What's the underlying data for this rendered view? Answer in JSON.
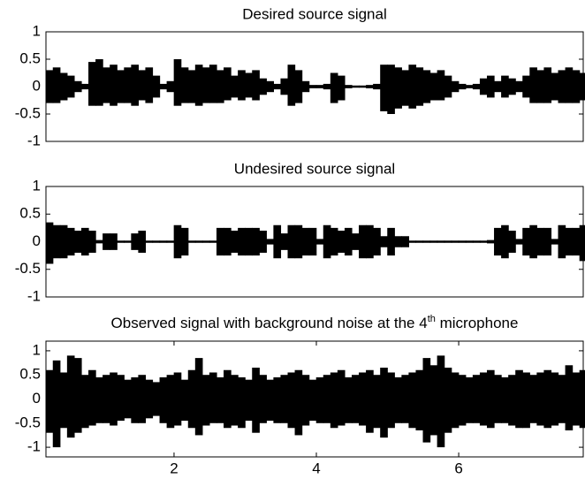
{
  "chart_data": [
    {
      "type": "waveform",
      "title": "Desired source signal",
      "x": [
        0.25,
        0.35,
        0.45,
        0.55,
        0.65,
        0.75,
        0.85,
        0.95,
        1.05,
        1.15,
        1.25,
        1.35,
        1.45,
        1.55,
        1.65,
        1.75,
        1.85,
        1.95,
        2.05,
        2.15,
        2.25,
        2.35,
        2.45,
        2.55,
        2.65,
        2.75,
        2.85,
        2.95,
        3.05,
        3.15,
        3.25,
        3.35,
        3.45,
        3.55,
        3.65,
        3.75,
        3.85,
        3.95,
        4.05,
        4.15,
        4.25,
        4.35,
        4.45,
        4.55,
        4.65,
        4.75,
        4.85,
        4.95,
        5.05,
        5.15,
        5.25,
        5.35,
        5.45,
        5.55,
        5.65,
        5.75,
        5.85,
        5.95,
        6.05,
        6.15,
        6.25,
        6.35,
        6.45,
        6.55,
        6.65,
        6.75,
        6.85,
        6.95,
        7.05,
        7.15,
        7.25,
        7.35,
        7.45,
        7.55,
        7.65,
        7.75
      ],
      "upper": [
        0.3,
        0.35,
        0.25,
        0.2,
        0.1,
        0.05,
        0.45,
        0.5,
        0.35,
        0.4,
        0.3,
        0.35,
        0.4,
        0.3,
        0.35,
        0.2,
        0.05,
        0.1,
        0.5,
        0.35,
        0.3,
        0.4,
        0.35,
        0.4,
        0.3,
        0.35,
        0.2,
        0.3,
        0.25,
        0.3,
        0.15,
        0.1,
        0.05,
        0.15,
        0.4,
        0.3,
        0.1,
        0.03,
        0.03,
        0.05,
        0.25,
        0.2,
        0.03,
        0.02,
        0.02,
        0.03,
        0.05,
        0.4,
        0.4,
        0.35,
        0.3,
        0.4,
        0.35,
        0.3,
        0.25,
        0.3,
        0.2,
        0.1,
        0.05,
        0.03,
        0.05,
        0.15,
        0.2,
        0.1,
        0.2,
        0.15,
        0.1,
        0.2,
        0.35,
        0.3,
        0.35,
        0.25,
        0.3,
        0.35,
        0.3,
        0.25
      ],
      "lower": [
        -0.3,
        -0.3,
        -0.25,
        -0.2,
        -0.1,
        -0.05,
        -0.35,
        -0.35,
        -0.3,
        -0.35,
        -0.3,
        -0.3,
        -0.35,
        -0.25,
        -0.3,
        -0.2,
        -0.05,
        -0.1,
        -0.35,
        -0.3,
        -0.3,
        -0.35,
        -0.3,
        -0.3,
        -0.3,
        -0.25,
        -0.2,
        -0.25,
        -0.2,
        -0.25,
        -0.15,
        -0.1,
        -0.05,
        -0.15,
        -0.35,
        -0.3,
        -0.1,
        -0.03,
        -0.03,
        -0.05,
        -0.3,
        -0.25,
        -0.03,
        -0.02,
        -0.02,
        -0.03,
        -0.05,
        -0.45,
        -0.5,
        -0.4,
        -0.35,
        -0.4,
        -0.35,
        -0.3,
        -0.25,
        -0.25,
        -0.2,
        -0.1,
        -0.05,
        -0.03,
        -0.05,
        -0.15,
        -0.2,
        -0.1,
        -0.2,
        -0.15,
        -0.1,
        -0.2,
        -0.3,
        -0.3,
        -0.3,
        -0.25,
        -0.3,
        -0.3,
        -0.3,
        -0.25
      ],
      "color": "#000000",
      "xlim": [
        0.2,
        7.75
      ],
      "ylim": [
        -1,
        1
      ],
      "yticks": [
        -1,
        -0.5,
        0,
        0.5,
        1
      ]
    },
    {
      "type": "waveform",
      "title": "Undesired source signal",
      "x": [
        0.25,
        0.35,
        0.45,
        0.55,
        0.65,
        0.75,
        0.85,
        0.95,
        1.05,
        1.15,
        1.25,
        1.35,
        1.45,
        1.55,
        1.65,
        1.75,
        1.85,
        1.95,
        2.05,
        2.15,
        2.25,
        2.35,
        2.45,
        2.55,
        2.65,
        2.75,
        2.85,
        2.95,
        3.05,
        3.15,
        3.25,
        3.35,
        3.45,
        3.55,
        3.65,
        3.75,
        3.85,
        3.95,
        4.05,
        4.15,
        4.25,
        4.35,
        4.45,
        4.55,
        4.65,
        4.75,
        4.85,
        4.95,
        5.05,
        5.15,
        5.25,
        5.35,
        5.45,
        5.55,
        5.65,
        5.75,
        5.85,
        5.95,
        6.05,
        6.15,
        6.25,
        6.35,
        6.45,
        6.55,
        6.65,
        6.75,
        6.85,
        6.95,
        7.05,
        7.15,
        7.25,
        7.35,
        7.45,
        7.55,
        7.65,
        7.75
      ],
      "upper": [
        0.35,
        0.3,
        0.3,
        0.25,
        0.2,
        0.25,
        0.2,
        0.03,
        0.15,
        0.15,
        0.02,
        0.02,
        0.15,
        0.2,
        0.02,
        0.02,
        0.02,
        0.02,
        0.3,
        0.25,
        0.02,
        0.02,
        0.02,
        0.02,
        0.25,
        0.25,
        0.2,
        0.25,
        0.25,
        0.25,
        0.2,
        0.05,
        0.3,
        0.15,
        0.3,
        0.3,
        0.25,
        0.25,
        0.05,
        0.3,
        0.25,
        0.2,
        0.25,
        0.15,
        0.3,
        0.3,
        0.25,
        0.1,
        0.25,
        0.1,
        0.1,
        0.02,
        0.02,
        0.02,
        0.02,
        0.02,
        0.02,
        0.02,
        0.02,
        0.02,
        0.02,
        0.02,
        0.03,
        0.25,
        0.3,
        0.2,
        0.05,
        0.25,
        0.3,
        0.25,
        0.25,
        0.05,
        0.3,
        0.25,
        0.25,
        0.3
      ],
      "lower": [
        -0.4,
        -0.3,
        -0.3,
        -0.25,
        -0.2,
        -0.25,
        -0.2,
        -0.03,
        -0.15,
        -0.15,
        -0.02,
        -0.02,
        -0.15,
        -0.2,
        -0.02,
        -0.02,
        -0.02,
        -0.02,
        -0.3,
        -0.25,
        -0.02,
        -0.02,
        -0.02,
        -0.02,
        -0.25,
        -0.25,
        -0.2,
        -0.25,
        -0.25,
        -0.25,
        -0.2,
        -0.05,
        -0.3,
        -0.15,
        -0.3,
        -0.3,
        -0.25,
        -0.25,
        -0.05,
        -0.3,
        -0.25,
        -0.2,
        -0.25,
        -0.15,
        -0.3,
        -0.3,
        -0.25,
        -0.1,
        -0.25,
        -0.1,
        -0.1,
        -0.02,
        -0.02,
        -0.02,
        -0.02,
        -0.02,
        -0.02,
        -0.02,
        -0.02,
        -0.02,
        -0.02,
        -0.02,
        -0.03,
        -0.25,
        -0.3,
        -0.2,
        -0.05,
        -0.25,
        -0.3,
        -0.25,
        -0.25,
        -0.05,
        -0.3,
        -0.25,
        -0.25,
        -0.35
      ],
      "color": "#000000",
      "xlim": [
        0.2,
        7.75
      ],
      "ylim": [
        -1,
        1
      ],
      "yticks": [
        -1,
        -0.5,
        0,
        0.5,
        1
      ]
    },
    {
      "type": "waveform",
      "title": [
        "Observed signal with background noise at the 4",
        "th",
        " microphone"
      ],
      "x": [
        0.25,
        0.35,
        0.45,
        0.55,
        0.65,
        0.75,
        0.85,
        0.95,
        1.05,
        1.15,
        1.25,
        1.35,
        1.45,
        1.55,
        1.65,
        1.75,
        1.85,
        1.95,
        2.05,
        2.15,
        2.25,
        2.35,
        2.45,
        2.55,
        2.65,
        2.75,
        2.85,
        2.95,
        3.05,
        3.15,
        3.25,
        3.35,
        3.45,
        3.55,
        3.65,
        3.75,
        3.85,
        3.95,
        4.05,
        4.15,
        4.25,
        4.35,
        4.45,
        4.55,
        4.65,
        4.75,
        4.85,
        4.95,
        5.05,
        5.15,
        5.25,
        5.35,
        5.45,
        5.55,
        5.65,
        5.75,
        5.85,
        5.95,
        6.05,
        6.15,
        6.25,
        6.35,
        6.45,
        6.55,
        6.65,
        6.75,
        6.85,
        6.95,
        7.05,
        7.15,
        7.25,
        7.35,
        7.45,
        7.55,
        7.65,
        7.75
      ],
      "upper": [
        0.6,
        0.8,
        0.55,
        0.9,
        0.85,
        0.5,
        0.6,
        0.45,
        0.5,
        0.55,
        0.5,
        0.4,
        0.45,
        0.5,
        0.4,
        0.35,
        0.45,
        0.5,
        0.55,
        0.4,
        0.6,
        0.85,
        0.5,
        0.55,
        0.45,
        0.6,
        0.5,
        0.45,
        0.4,
        0.65,
        0.5,
        0.4,
        0.45,
        0.5,
        0.55,
        0.6,
        0.5,
        0.4,
        0.45,
        0.5,
        0.55,
        0.6,
        0.45,
        0.5,
        0.55,
        0.6,
        0.5,
        0.65,
        0.55,
        0.45,
        0.5,
        0.55,
        0.6,
        0.85,
        0.7,
        0.9,
        0.65,
        0.55,
        0.5,
        0.45,
        0.5,
        0.55,
        0.6,
        0.5,
        0.45,
        0.5,
        0.6,
        0.55,
        0.5,
        0.55,
        0.6,
        0.55,
        0.5,
        0.7,
        0.55,
        0.6
      ],
      "lower": [
        -0.7,
        -1.0,
        -0.6,
        -0.8,
        -0.7,
        -0.6,
        -0.55,
        -0.5,
        -0.5,
        -0.55,
        -0.45,
        -0.4,
        -0.5,
        -0.5,
        -0.4,
        -0.35,
        -0.5,
        -0.6,
        -0.55,
        -0.45,
        -0.6,
        -0.75,
        -0.55,
        -0.5,
        -0.5,
        -0.6,
        -0.55,
        -0.6,
        -0.45,
        -0.7,
        -0.5,
        -0.45,
        -0.5,
        -0.5,
        -0.6,
        -0.75,
        -0.55,
        -0.45,
        -0.5,
        -0.5,
        -0.6,
        -0.55,
        -0.5,
        -0.5,
        -0.55,
        -0.7,
        -0.6,
        -0.8,
        -0.6,
        -0.5,
        -0.5,
        -0.6,
        -0.65,
        -0.9,
        -0.75,
        -1.0,
        -0.7,
        -0.6,
        -0.55,
        -0.5,
        -0.5,
        -0.55,
        -0.6,
        -0.5,
        -0.5,
        -0.55,
        -0.6,
        -0.6,
        -0.5,
        -0.55,
        -0.6,
        -0.55,
        -0.5,
        -0.65,
        -0.55,
        -0.6
      ],
      "color": "#000000",
      "xlim": [
        0.2,
        7.75
      ],
      "ylim": [
        -1.2,
        1.2
      ],
      "yticks": [
        -1,
        -0.5,
        0,
        0.5,
        1
      ],
      "xticks": [
        2,
        4,
        6
      ]
    }
  ]
}
